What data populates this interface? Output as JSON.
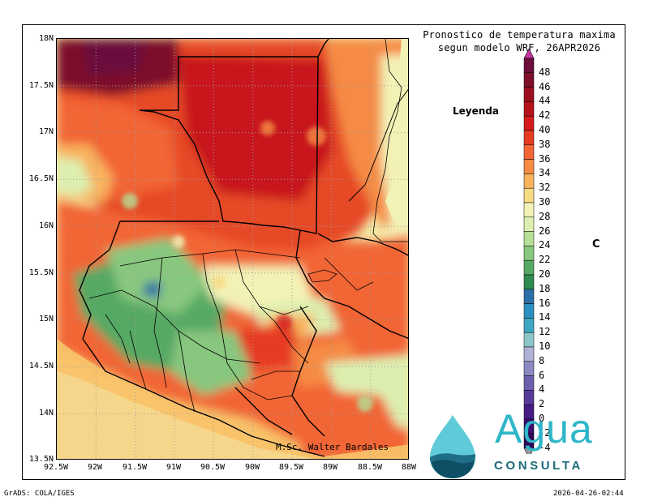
{
  "title": {
    "line1": "Pronostico de temperatura maxima",
    "line2": "segun modelo WRF, 26APR2026"
  },
  "legend_word": "Leyenda",
  "unit": "C",
  "credit": "M.Sc. Walter Bardales",
  "footer": {
    "left": "GrADS: COLA/IGES",
    "right": "2026-04-26-02:44"
  },
  "logo": {
    "word": "Agua",
    "subword": "CONSULTA",
    "icon": "water-drop-icon"
  },
  "axes": {
    "lat_labels": [
      "18N",
      "17.5N",
      "17N",
      "16.5N",
      "16N",
      "15.5N",
      "15N",
      "14.5N",
      "14N",
      "13.5N"
    ],
    "lon_labels": [
      "92.5W",
      "92W",
      "91.5W",
      "91W",
      "90.5W",
      "90W",
      "89.5W",
      "89W",
      "88.5W",
      "88W"
    ]
  },
  "colorbar": {
    "labels": [
      "48",
      "46",
      "44",
      "42",
      "40",
      "38",
      "36",
      "34",
      "32",
      "30",
      "28",
      "26",
      "24",
      "22",
      "20",
      "18",
      "16",
      "14",
      "12",
      "10",
      "8",
      "6",
      "4",
      "2",
      "0",
      "-2",
      "-4"
    ],
    "colors": [
      "#6b0e3c",
      "#7d0f2a",
      "#9b1020",
      "#b5121b",
      "#d41a1a",
      "#e63b22",
      "#f26535",
      "#f58b45",
      "#f8b35f",
      "#f6da84",
      "#f3f2b6",
      "#dcefb0",
      "#b5df96",
      "#88c77e",
      "#56a963",
      "#2f8b4f",
      "#2b6fa8",
      "#2d8ec0",
      "#3fa7c3",
      "#8cc6c8",
      "#b1b3d6",
      "#8c88c2",
      "#6e5fae",
      "#583a98",
      "#471c85",
      "#3a0f6e",
      "#2d0858"
    ],
    "top_arrow_color": "#c2389e",
    "bottom_arrow_color": "#2d0858"
  },
  "map_colors": {
    "sea": "#f4e8a6",
    "border": "#000000",
    "grid": "#b8b8b8"
  }
}
